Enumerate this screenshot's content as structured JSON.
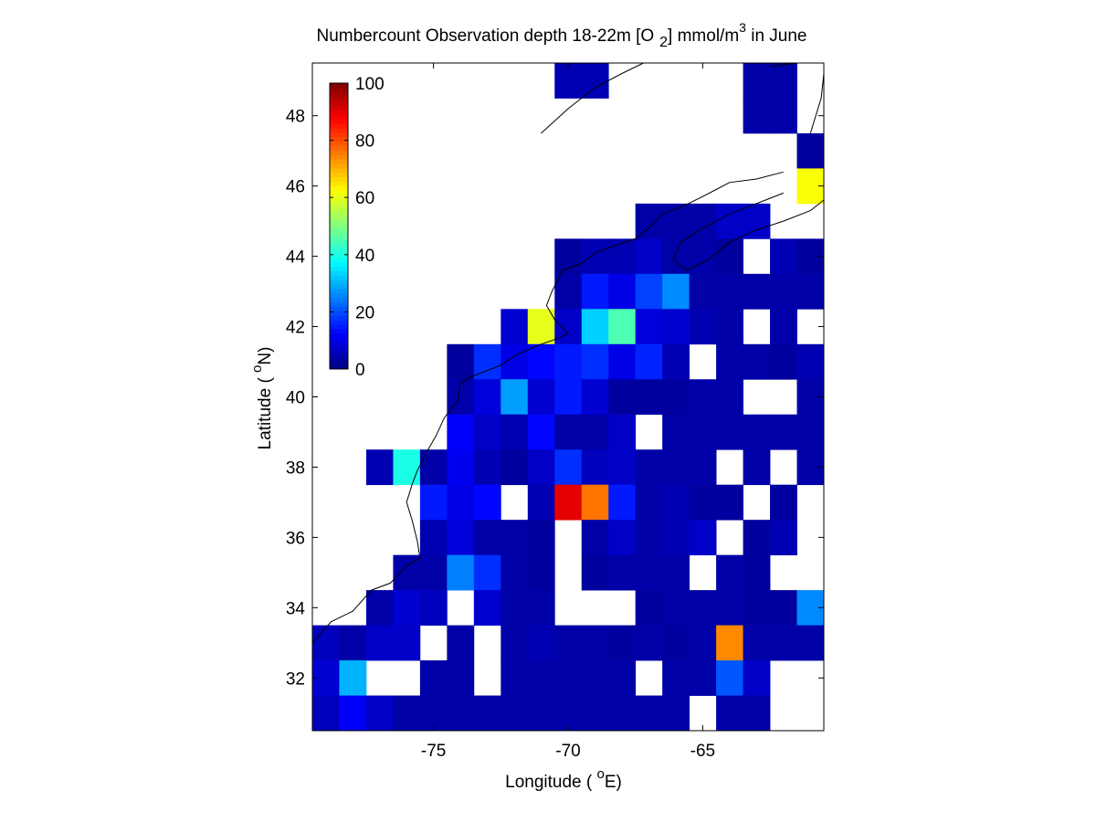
{
  "chart_data": {
    "type": "heatmap",
    "title": {
      "main": "Numbercount Observation depth 18-22m [O",
      "sub": "2",
      "mid": "] mmol/m",
      "sup": "3",
      "tail": " in June"
    },
    "xlabel": {
      "pre": "Longitude ( ",
      "sup": "o",
      "post": "E)"
    },
    "ylabel": {
      "pre": "Latitude ( ",
      "sup": "o",
      "post": "N)"
    },
    "xlim": [
      -79.5,
      -60.5
    ],
    "ylim": [
      30.5,
      49.5
    ],
    "xticks": [
      -75,
      -70,
      -65
    ],
    "xtick_labels": [
      "-75",
      "-70",
      "-65"
    ],
    "yticks": [
      32,
      34,
      36,
      38,
      40,
      42,
      44,
      46,
      48
    ],
    "ytick_labels": [
      "32",
      "34",
      "36",
      "38",
      "40",
      "42",
      "44",
      "46",
      "48"
    ],
    "colorbar": {
      "colormap": "jet",
      "range": [
        0,
        100
      ],
      "ticks": [
        0,
        20,
        40,
        60,
        80,
        100
      ],
      "tick_labels": [
        "0",
        "20",
        "40",
        "60",
        "80",
        "100"
      ],
      "placement": "top-left inside axes"
    },
    "grid": false,
    "cell_size_deg": 1,
    "cells_note": "[longitude, latitude, count] — cell spans lon..lon+1, lat..lat+1",
    "cells": [
      [
        -70.5,
        48.5,
        5
      ],
      [
        -69.5,
        48.5,
        5
      ],
      [
        -63.5,
        48.5,
        4
      ],
      [
        -62.5,
        48.5,
        4
      ],
      [
        -63.5,
        47.5,
        4
      ],
      [
        -62.5,
        47.5,
        4
      ],
      [
        -63.5,
        49.5,
        4
      ],
      [
        -61.5,
        46.5,
        3
      ],
      [
        -61.5,
        45.5,
        62
      ],
      [
        -67.5,
        44.5,
        4
      ],
      [
        -66.5,
        44.5,
        4
      ],
      [
        -65.5,
        44.5,
        4
      ],
      [
        -64.5,
        44.5,
        7
      ],
      [
        -63.5,
        44.5,
        7
      ],
      [
        -70.5,
        43.5,
        3
      ],
      [
        -69.5,
        43.5,
        5
      ],
      [
        -68.5,
        43.5,
        5
      ],
      [
        -67.5,
        43.5,
        7
      ],
      [
        -66.5,
        43.5,
        4
      ],
      [
        -65.5,
        43.5,
        4
      ],
      [
        -64.5,
        43.5,
        3
      ],
      [
        -62.5,
        43.5,
        5
      ],
      [
        -61.5,
        43.5,
        3
      ],
      [
        -60.5,
        43.5,
        4
      ],
      [
        -70.5,
        42.5,
        4
      ],
      [
        -69.5,
        42.5,
        15
      ],
      [
        -68.5,
        42.5,
        10
      ],
      [
        -67.5,
        42.5,
        19
      ],
      [
        -66.5,
        42.5,
        26
      ],
      [
        -65.5,
        42.5,
        4
      ],
      [
        -64.5,
        42.5,
        4
      ],
      [
        -63.5,
        42.5,
        4
      ],
      [
        -62.5,
        42.5,
        4
      ],
      [
        -61.5,
        42.5,
        4
      ],
      [
        -60.5,
        42.5,
        4
      ],
      [
        -72.5,
        41.5,
        8
      ],
      [
        -71.5,
        41.5,
        60
      ],
      [
        -70.5,
        41.5,
        7
      ],
      [
        -69.5,
        41.5,
        33
      ],
      [
        -68.5,
        41.5,
        45
      ],
      [
        -67.5,
        41.5,
        9
      ],
      [
        -66.5,
        41.5,
        8
      ],
      [
        -65.5,
        41.5,
        5
      ],
      [
        -64.5,
        41.5,
        4
      ],
      [
        -62.5,
        41.5,
        4
      ],
      [
        -60.5,
        41.5,
        4
      ],
      [
        -74.5,
        40.5,
        3
      ],
      [
        -73.5,
        40.5,
        17
      ],
      [
        -72.5,
        40.5,
        10
      ],
      [
        -71.5,
        40.5,
        13
      ],
      [
        -70.5,
        40.5,
        15
      ],
      [
        -69.5,
        40.5,
        17
      ],
      [
        -68.5,
        40.5,
        10
      ],
      [
        -67.5,
        40.5,
        16
      ],
      [
        -66.5,
        40.5,
        5
      ],
      [
        -64.5,
        40.5,
        4
      ],
      [
        -63.5,
        40.5,
        4
      ],
      [
        -62.5,
        40.5,
        3
      ],
      [
        -61.5,
        40.5,
        5
      ],
      [
        -60.5,
        40.5,
        4
      ],
      [
        -74.5,
        39.5,
        4
      ],
      [
        -73.5,
        39.5,
        9
      ],
      [
        -72.5,
        39.5,
        28
      ],
      [
        -71.5,
        39.5,
        8
      ],
      [
        -70.5,
        39.5,
        15
      ],
      [
        -69.5,
        39.5,
        8
      ],
      [
        -68.5,
        39.5,
        3
      ],
      [
        -67.5,
        39.5,
        3
      ],
      [
        -66.5,
        39.5,
        3
      ],
      [
        -65.5,
        39.5,
        4
      ],
      [
        -64.5,
        39.5,
        4
      ],
      [
        -61.5,
        39.5,
        4
      ],
      [
        -74.5,
        38.5,
        12
      ],
      [
        -73.5,
        38.5,
        7
      ],
      [
        -72.5,
        38.5,
        5
      ],
      [
        -71.5,
        38.5,
        13
      ],
      [
        -70.5,
        38.5,
        4
      ],
      [
        -69.5,
        38.5,
        4
      ],
      [
        -68.5,
        38.5,
        7
      ],
      [
        -66.5,
        38.5,
        4
      ],
      [
        -65.5,
        38.5,
        4
      ],
      [
        -64.5,
        38.5,
        4
      ],
      [
        -63.5,
        38.5,
        4
      ],
      [
        -62.5,
        38.5,
        4
      ],
      [
        -61.5,
        38.5,
        4
      ],
      [
        -60.5,
        38.5,
        5
      ],
      [
        -77.5,
        37.5,
        5
      ],
      [
        -76.5,
        37.5,
        40
      ],
      [
        -75.5,
        37.5,
        4
      ],
      [
        -74.5,
        37.5,
        11
      ],
      [
        -73.5,
        37.5,
        5
      ],
      [
        -72.5,
        37.5,
        3
      ],
      [
        -71.5,
        37.5,
        7
      ],
      [
        -70.5,
        37.5,
        17
      ],
      [
        -69.5,
        37.5,
        6
      ],
      [
        -68.5,
        37.5,
        7
      ],
      [
        -67.5,
        37.5,
        4
      ],
      [
        -66.5,
        37.5,
        4
      ],
      [
        -65.5,
        37.5,
        4
      ],
      [
        -63.5,
        37.5,
        4
      ],
      [
        -61.5,
        37.5,
        4
      ],
      [
        -75.5,
        36.5,
        15
      ],
      [
        -74.5,
        36.5,
        10
      ],
      [
        -73.5,
        36.5,
        13
      ],
      [
        -71.5,
        36.5,
        5
      ],
      [
        -70.5,
        36.5,
        90
      ],
      [
        -69.5,
        36.5,
        76
      ],
      [
        -68.5,
        36.5,
        15
      ],
      [
        -67.5,
        36.5,
        4
      ],
      [
        -66.5,
        36.5,
        5
      ],
      [
        -65.5,
        36.5,
        3
      ],
      [
        -64.5,
        36.5,
        3
      ],
      [
        -62.5,
        36.5,
        3
      ],
      [
        -75.5,
        35.5,
        5
      ],
      [
        -74.5,
        35.5,
        9
      ],
      [
        -73.5,
        35.5,
        4
      ],
      [
        -72.5,
        35.5,
        4
      ],
      [
        -71.5,
        35.5,
        3
      ],
      [
        -69.5,
        35.5,
        4
      ],
      [
        -68.5,
        35.5,
        7
      ],
      [
        -67.5,
        35.5,
        4
      ],
      [
        -66.5,
        35.5,
        5
      ],
      [
        -65.5,
        35.5,
        7
      ],
      [
        -63.5,
        35.5,
        3
      ],
      [
        -62.5,
        35.5,
        5
      ],
      [
        -60.5,
        35.5,
        3
      ],
      [
        -76.5,
        34.5,
        4
      ],
      [
        -75.5,
        34.5,
        4
      ],
      [
        -74.5,
        34.5,
        25
      ],
      [
        -73.5,
        34.5,
        17
      ],
      [
        -72.5,
        34.5,
        4
      ],
      [
        -71.5,
        34.5,
        3
      ],
      [
        -69.5,
        34.5,
        3
      ],
      [
        -68.5,
        34.5,
        4
      ],
      [
        -67.5,
        34.5,
        4
      ],
      [
        -66.5,
        34.5,
        4
      ],
      [
        -64.5,
        34.5,
        4
      ],
      [
        -63.5,
        34.5,
        3
      ],
      [
        -77.5,
        33.5,
        4
      ],
      [
        -76.5,
        33.5,
        8
      ],
      [
        -75.5,
        33.5,
        6
      ],
      [
        -73.5,
        33.5,
        8
      ],
      [
        -72.5,
        33.5,
        4
      ],
      [
        -71.5,
        33.5,
        4
      ],
      [
        -67.5,
        33.5,
        3
      ],
      [
        -66.5,
        33.5,
        4
      ],
      [
        -65.5,
        33.5,
        4
      ],
      [
        -64.5,
        33.5,
        4
      ],
      [
        -63.5,
        33.5,
        3
      ],
      [
        -62.5,
        33.5,
        3
      ],
      [
        -61.5,
        33.5,
        26
      ],
      [
        -79.5,
        32.5,
        6
      ],
      [
        -78.5,
        32.5,
        4
      ],
      [
        -77.5,
        32.5,
        7
      ],
      [
        -76.5,
        32.5,
        7
      ],
      [
        -74.5,
        32.5,
        4
      ],
      [
        -72.5,
        32.5,
        4
      ],
      [
        -71.5,
        32.5,
        5
      ],
      [
        -70.5,
        32.5,
        4
      ],
      [
        -69.5,
        32.5,
        4
      ],
      [
        -68.5,
        32.5,
        3
      ],
      [
        -67.5,
        32.5,
        4
      ],
      [
        -66.5,
        32.5,
        3
      ],
      [
        -65.5,
        32.5,
        4
      ],
      [
        -64.5,
        32.5,
        74
      ],
      [
        -63.5,
        32.5,
        4
      ],
      [
        -62.5,
        32.5,
        4
      ],
      [
        -61.5,
        32.5,
        4
      ],
      [
        -79.5,
        31.5,
        8
      ],
      [
        -78.5,
        31.5,
        30
      ],
      [
        -75.5,
        31.5,
        4
      ],
      [
        -74.5,
        31.5,
        4
      ],
      [
        -72.5,
        31.5,
        4
      ],
      [
        -71.5,
        31.5,
        4
      ],
      [
        -70.5,
        31.5,
        4
      ],
      [
        -69.5,
        31.5,
        4
      ],
      [
        -68.5,
        31.5,
        4
      ],
      [
        -66.5,
        31.5,
        4
      ],
      [
        -65.5,
        31.5,
        4
      ],
      [
        -64.5,
        31.5,
        21
      ],
      [
        -63.5,
        31.5,
        7
      ],
      [
        -79.5,
        30.5,
        6
      ],
      [
        -78.5,
        30.5,
        12
      ],
      [
        -77.5,
        30.5,
        7
      ],
      [
        -76.5,
        30.5,
        4
      ],
      [
        -75.5,
        30.5,
        4
      ],
      [
        -74.5,
        30.5,
        4
      ],
      [
        -73.5,
        30.5,
        4
      ],
      [
        -72.5,
        30.5,
        4
      ],
      [
        -71.5,
        30.5,
        4
      ],
      [
        -70.5,
        30.5,
        4
      ],
      [
        -69.5,
        30.5,
        4
      ],
      [
        -68.5,
        30.5,
        4
      ],
      [
        -67.5,
        30.5,
        4
      ],
      [
        -66.5,
        30.5,
        4
      ],
      [
        -64.5,
        30.5,
        4
      ],
      [
        -63.5,
        30.5,
        4
      ]
    ],
    "coastline": [
      [
        [
          -79.5,
          33.0
        ],
        [
          -78.8,
          33.6
        ],
        [
          -78.0,
          33.9
        ],
        [
          -77.3,
          34.5
        ],
        [
          -76.6,
          34.7
        ],
        [
          -76.0,
          35.2
        ],
        [
          -75.5,
          35.4
        ],
        [
          -75.6,
          35.9
        ],
        [
          -75.8,
          36.5
        ],
        [
          -76.0,
          37.0
        ],
        [
          -75.8,
          37.5
        ],
        [
          -75.6,
          37.9
        ],
        [
          -75.2,
          38.5
        ],
        [
          -74.9,
          38.9
        ],
        [
          -74.6,
          39.4
        ],
        [
          -74.1,
          39.9
        ],
        [
          -74.0,
          40.4
        ],
        [
          -73.5,
          40.6
        ],
        [
          -72.5,
          40.9
        ],
        [
          -71.9,
          41.2
        ],
        [
          -71.0,
          41.5
        ],
        [
          -70.6,
          41.6
        ],
        [
          -70.0,
          41.8
        ],
        [
          -70.5,
          42.2
        ],
        [
          -70.8,
          42.6
        ],
        [
          -70.6,
          43.0
        ],
        [
          -70.2,
          43.6
        ],
        [
          -69.5,
          43.8
        ],
        [
          -69.0,
          44.1
        ],
        [
          -68.3,
          44.3
        ],
        [
          -67.5,
          44.5
        ],
        [
          -67.0,
          44.8
        ],
        [
          -66.5,
          45.2
        ],
        [
          -65.8,
          45.4
        ],
        [
          -65.0,
          45.7
        ],
        [
          -64.5,
          45.9
        ],
        [
          -64.0,
          46.1
        ],
        [
          -63.0,
          46.2
        ],
        [
          -62.0,
          46.4
        ]
      ],
      [
        [
          -62.0,
          45.8
        ],
        [
          -63.0,
          45.5
        ],
        [
          -64.0,
          45.2
        ],
        [
          -65.0,
          44.8
        ],
        [
          -65.8,
          44.4
        ],
        [
          -66.1,
          43.9
        ],
        [
          -65.6,
          43.6
        ],
        [
          -64.8,
          43.9
        ],
        [
          -64.0,
          44.4
        ],
        [
          -63.2,
          44.7
        ],
        [
          -62.0,
          45.0
        ],
        [
          -61.0,
          45.3
        ],
        [
          -60.5,
          45.6
        ]
      ],
      [
        [
          -71.0,
          47.5
        ],
        [
          -70.0,
          48.2
        ],
        [
          -69.0,
          48.8
        ],
        [
          -68.0,
          49.2
        ],
        [
          -67.2,
          49.5
        ]
      ],
      [
        [
          -61.0,
          47.5
        ],
        [
          -60.6,
          48.5
        ],
        [
          -60.5,
          49.2
        ]
      ],
      [
        [
          -62.5,
          49.4
        ],
        [
          -61.5,
          49.5
        ]
      ]
    ]
  }
}
